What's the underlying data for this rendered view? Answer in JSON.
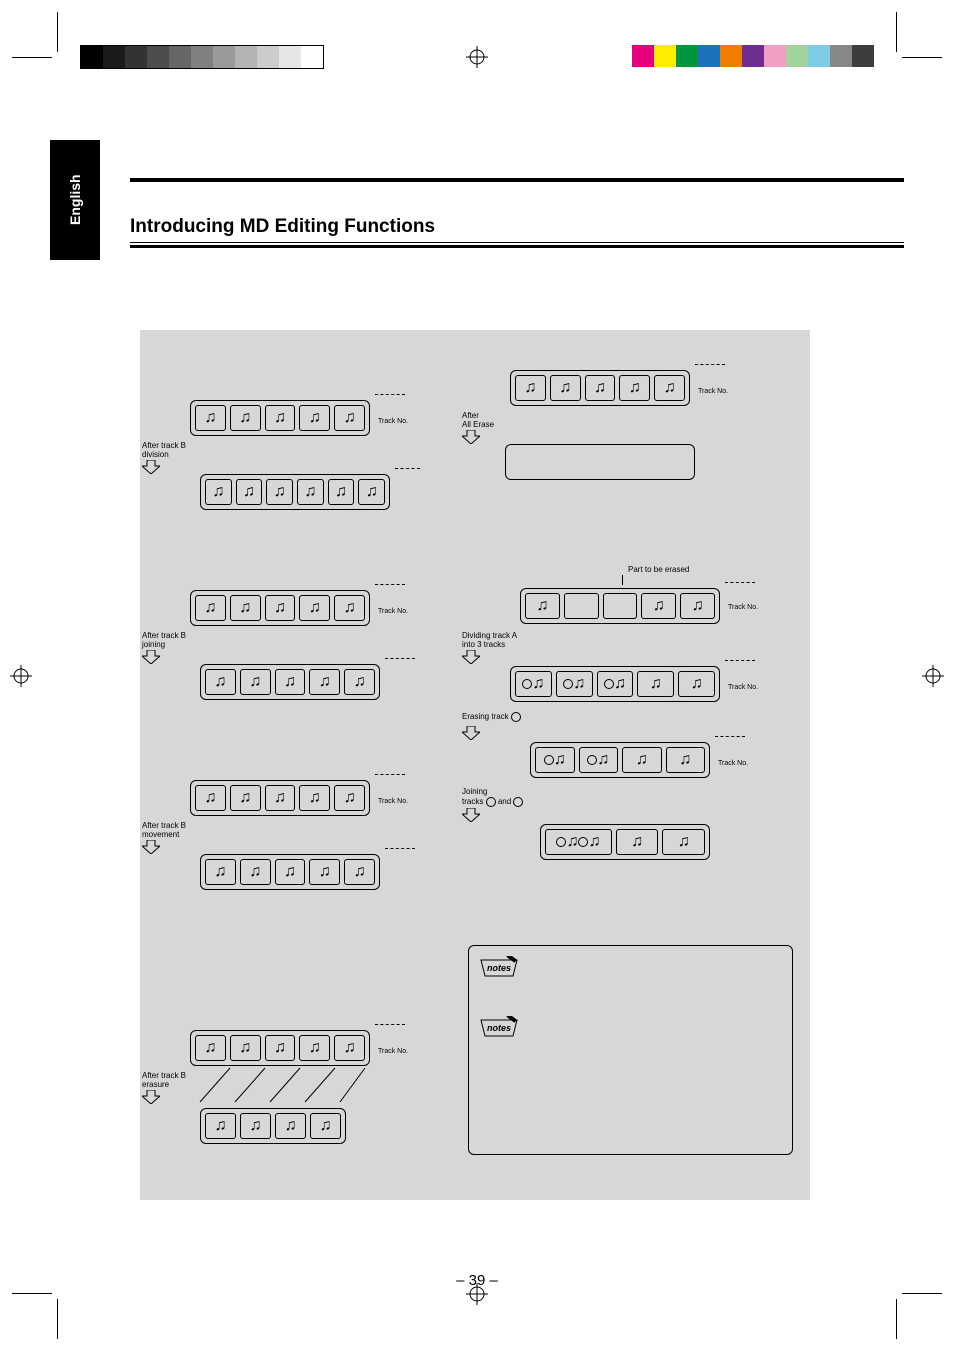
{
  "lang_tab": "English",
  "title": "Introducing MD Editing Functions",
  "page_number": "– 39 –",
  "labels": {
    "track_no": "Track No.",
    "after_division": "After track B\ndivision",
    "after_joining": "After track B\njoining",
    "after_movement": "After track B\nmovement",
    "after_erasure": "After track B\nerasure",
    "after_all_erase": "After\nAll Erase",
    "part_erased": "Part to be erased",
    "dividing_a": "Dividing track A\ninto 3 tracks",
    "erasing_track": "Erasing track",
    "joining_tracks": "Joining\ntracks",
    "and": "and"
  },
  "styling": {
    "panel_bg": "#d7d7d7",
    "page_bg": "#ffffff",
    "text_color": "#000000",
    "gray_swatches": [
      "#000000",
      "#1a1a1a",
      "#333333",
      "#4d4d4d",
      "#666666",
      "#808080",
      "#999999",
      "#b3b3b3",
      "#cccccc",
      "#e6e6e6",
      "#ffffff"
    ],
    "color_swatches": [
      "#e6007e",
      "#ffed00",
      "#009640",
      "#1d71b8",
      "#ef7d00",
      "#6f2c91",
      "#f29ec4",
      "#a3d39c",
      "#7ecde8",
      "#878787",
      "#3c3c3b"
    ]
  }
}
